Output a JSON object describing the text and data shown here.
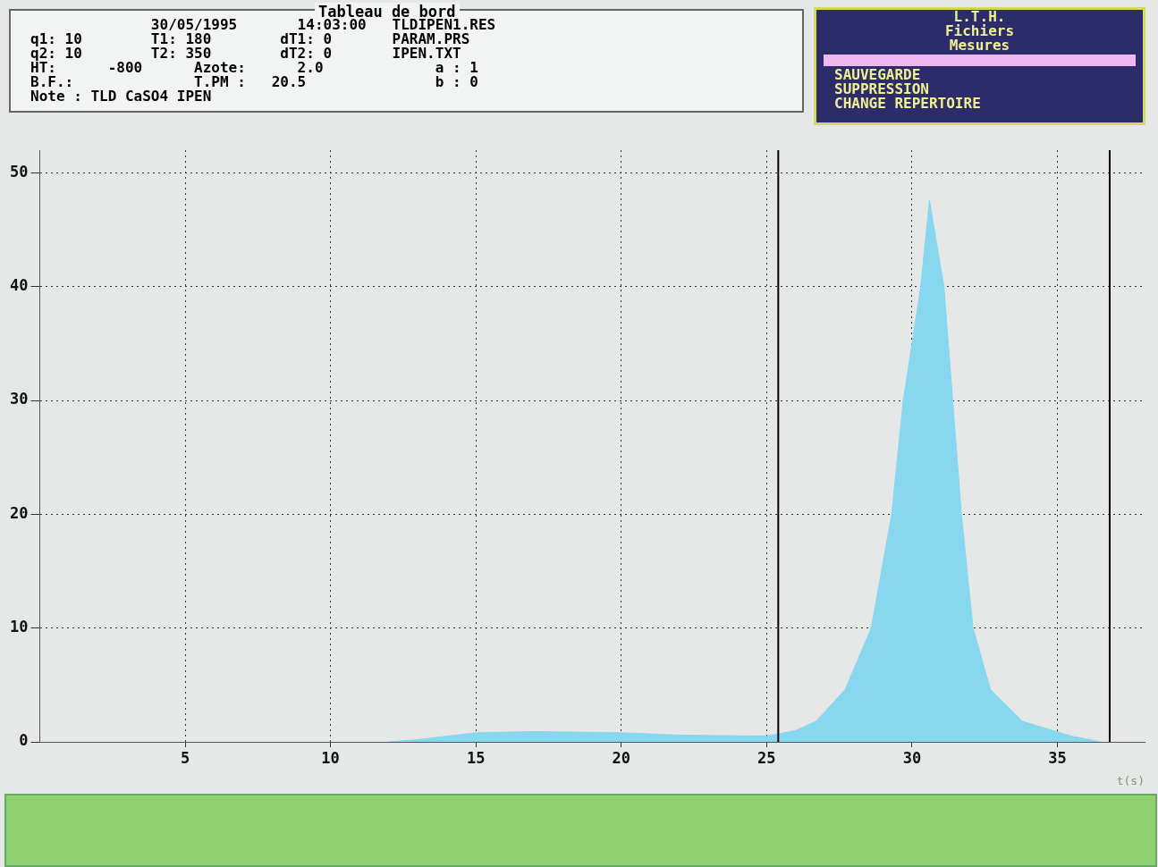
{
  "chart_data": {
    "type": "area",
    "title": "Tableau de bord",
    "xlabel": "t(s)",
    "x": [
      12,
      13,
      14,
      15,
      17,
      20,
      22,
      25,
      26,
      26.7,
      27.7,
      28.6,
      29.3,
      29.7,
      30.3,
      30.6,
      31.1,
      31.4,
      31.7,
      32.1,
      32.7,
      33.8,
      35.5,
      36.5
    ],
    "values": [
      0,
      0.2,
      0.5,
      0.8,
      0.9,
      0.8,
      0.6,
      0.5,
      1,
      1.8,
      4.6,
      10,
      20,
      30,
      40,
      47.6,
      40,
      30,
      20,
      10,
      4.6,
      1.8,
      0.5,
      0
    ],
    "color": "#87d7ef",
    "xlim": [
      0,
      38
    ],
    "ylim": [
      0,
      52
    ],
    "xticks": [
      5,
      10,
      15,
      20,
      25,
      30,
      35
    ],
    "yticks": [
      0,
      10,
      20,
      30,
      40,
      50
    ],
    "grid": true,
    "ref_lines": [
      {
        "axis": "x",
        "value": 25.4,
        "color": "#000000"
      },
      {
        "axis": "x",
        "value": 36.8,
        "color": "#000000"
      }
    ],
    "annotations": [
      "              30/05/1995       14:03:00   TLDIPEN1.RES",
      "q1: 10        T1: 180        dT1: 0       PARAM.PRS",
      "q2: 10        T2: 350        dT2: 0       IPEN.TXT",
      "HT:      -800      Azote:      2.0             a : 1",
      "B.F.:              T.PM :   20.5               b : 0",
      "Note : TLD CaSO4 IPEN",
      "L.T.H.",
      "Fichiers",
      "Mesures",
      "SAUVEGARDE",
      "SUPPRESSION",
      "CHANGE REPERTOIRE"
    ]
  }
}
